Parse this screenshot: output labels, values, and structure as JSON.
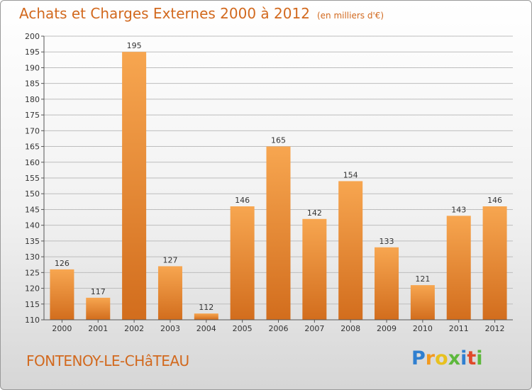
{
  "title": "Achats et Charges Externes 2000 à 2012",
  "title_unit": "(en milliers d'€)",
  "location": "FONTENOY-LE-CHâTEAU",
  "brand": {
    "letters": [
      "P",
      "r",
      "o",
      "x",
      "i",
      "t",
      "i"
    ],
    "colors": [
      "#2f7fd0",
      "#f29a1f",
      "#e8c11f",
      "#5db83c",
      "#2f7fd0",
      "#e04a2a",
      "#5db83c"
    ]
  },
  "colors": {
    "title": "#d2691e",
    "bar_light": "#f7a650",
    "bar_dark": "#d26d1d",
    "grid": "#bdbdbd"
  },
  "chart_data": {
    "type": "bar",
    "categories": [
      "2000",
      "2001",
      "2002",
      "2003",
      "2004",
      "2005",
      "2006",
      "2007",
      "2008",
      "2009",
      "2010",
      "2011",
      "2012"
    ],
    "values": [
      126,
      117,
      195,
      127,
      112,
      146,
      165,
      142,
      154,
      133,
      121,
      143,
      146
    ],
    "ylim": [
      110,
      200
    ],
    "yticks": [
      110,
      115,
      120,
      125,
      130,
      135,
      140,
      145,
      150,
      155,
      160,
      165,
      170,
      175,
      180,
      185,
      190,
      195,
      200
    ],
    "grid": true,
    "data_labels": true
  }
}
